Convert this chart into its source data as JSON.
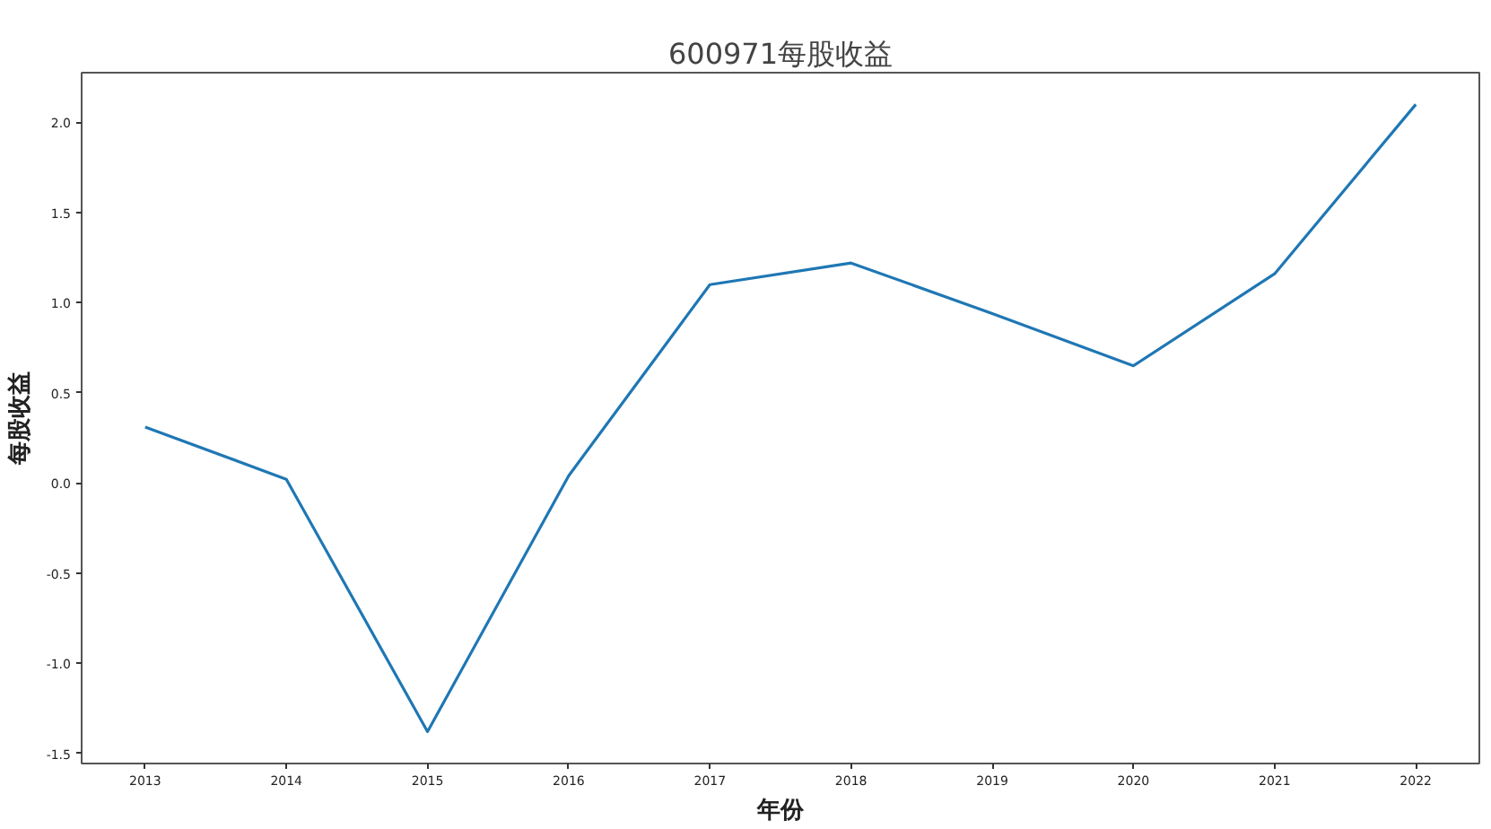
{
  "chart_data": {
    "type": "line",
    "title": "600971每股收益",
    "xlabel": "年份",
    "ylabel": "每股收益",
    "x": [
      2013,
      2014,
      2015,
      2016,
      2017,
      2018,
      2019,
      2020,
      2021,
      2022
    ],
    "series": [
      {
        "color": "#1f77b4",
        "values": [
          0.31,
          0.02,
          -1.38,
          0.04,
          1.1,
          1.22,
          0.94,
          0.65,
          1.16,
          2.1
        ]
      }
    ],
    "xlim": [
      2012.55,
      2022.45
    ],
    "xticks": [
      2013,
      2014,
      2015,
      2016,
      2017,
      2018,
      2019,
      2020,
      2021,
      2022
    ],
    "ylim": [
      -1.557,
      2.276
    ],
    "yticks": [
      {
        "value": -1.5,
        "label": "-1.5"
      },
      {
        "value": -1,
        "label": "-1.0"
      },
      {
        "value": -0.5,
        "label": "-0.5"
      },
      {
        "value": 0,
        "label": "0.0"
      },
      {
        "value": 0.5,
        "label": "0.5"
      },
      {
        "value": 1,
        "label": "1.0"
      },
      {
        "value": 1.5,
        "label": "1.5"
      },
      {
        "value": 2,
        "label": "2.0"
      }
    ]
  }
}
